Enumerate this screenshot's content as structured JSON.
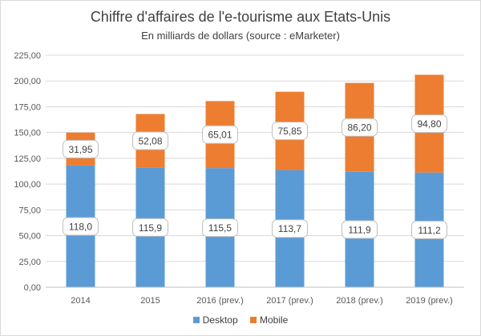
{
  "chart_data": {
    "type": "bar",
    "stacked": true,
    "title": "Chiffre d'affaires de l'e-tourisme aux Etats-Unis",
    "subtitle": "En milliards de dollars (source : eMarketer)",
    "categories": [
      "2014",
      "2015",
      "2016 (prev.)",
      "2017 (prev.)",
      "2018 (prev.)",
      "2019 (prev.)"
    ],
    "series": [
      {
        "name": "Desktop",
        "color": "#5b9bd5",
        "values": [
          118.0,
          115.9,
          115.5,
          113.7,
          111.9,
          111.2
        ],
        "labels": [
          "118,0",
          "115,9",
          "115,5",
          "113,7",
          "111,9",
          "111,2"
        ]
      },
      {
        "name": "Mobile",
        "color": "#ed7d31",
        "values": [
          31.95,
          52.08,
          65.01,
          75.85,
          86.2,
          94.8
        ],
        "labels": [
          "31,95",
          "52,08",
          "65,01",
          "75,85",
          "86,20",
          "94,80"
        ]
      }
    ],
    "ylim": [
      0,
      225
    ],
    "yticks": [
      "0,00",
      "25,00",
      "50,00",
      "75,00",
      "100,00",
      "125,00",
      "150,00",
      "175,00",
      "200,00",
      "225,00"
    ],
    "grid": true,
    "legend_position": "bottom"
  }
}
